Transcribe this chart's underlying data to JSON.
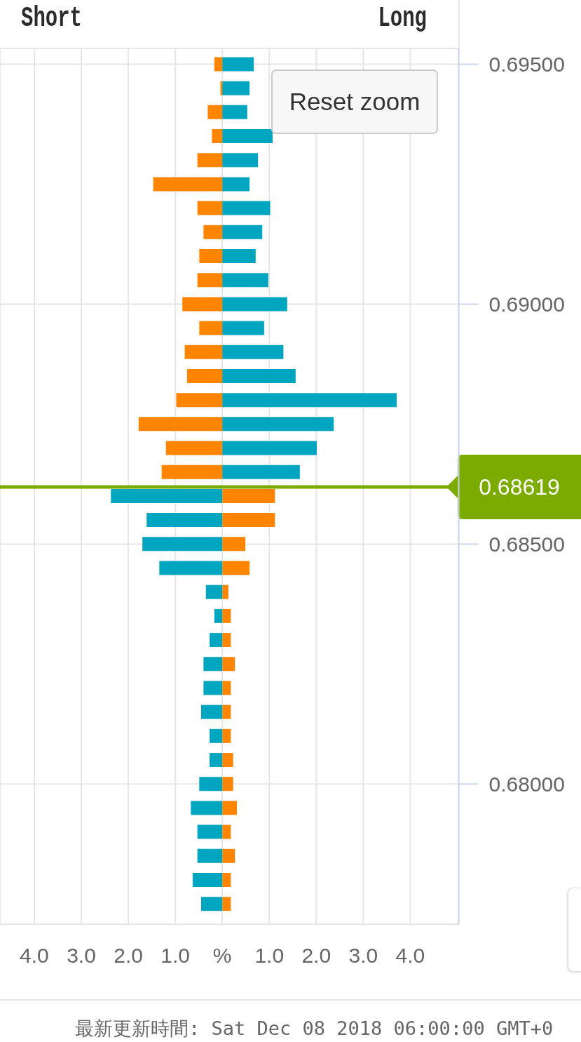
{
  "chart_data": {
    "type": "bar",
    "orientation": "horizontal",
    "stacked": true,
    "x": [
      0.695,
      0.6945,
      0.694,
      0.6935,
      0.693,
      0.6925,
      0.692,
      0.6915,
      0.691,
      0.6905,
      0.69,
      0.6895,
      0.689,
      0.6885,
      0.688,
      0.6875,
      0.687,
      0.6865,
      0.686,
      0.6855,
      0.685,
      0.6845,
      0.684,
      0.6835,
      0.683,
      0.6825,
      0.682,
      0.6815,
      0.681,
      0.6805,
      0.68,
      0.6795,
      0.679,
      0.6785,
      0.678,
      0.6775
    ],
    "series": [
      {
        "colors": [
          "#ff8400",
          "#ff8400",
          "#ff8400",
          "#ff8400",
          "#ff8400",
          "#ff8400",
          "#ff8400",
          "#ff8400",
          "#ff8400",
          "#ff8400",
          "#ff8400",
          "#ff8400",
          "#ff8400",
          "#ff8400",
          "#ff8400",
          "#ff8400",
          "#ff8400",
          "#ff8400",
          "#00a5c0",
          "#00a5c0",
          "#00a5c0",
          "#00a5c0",
          "#00a5c0",
          "#00a5c0",
          "#00a5c0",
          "#00a5c0",
          "#00a5c0",
          "#00a5c0",
          "#00a5c0",
          "#00a5c0",
          "#00a5c0",
          "#00a5c0",
          "#00a5c0",
          "#00a5c0",
          "#00a5c0",
          "#00a5c0"
        ],
        "values": [
          -0.17,
          -0.04,
          -0.31,
          -0.22,
          -0.53,
          -1.47,
          -0.53,
          -0.4,
          -0.49,
          -0.53,
          -0.85,
          -0.49,
          -0.8,
          -0.75,
          -0.98,
          -1.78,
          -1.2,
          -1.29,
          -2.37,
          -1.61,
          -1.7,
          -1.34,
          -0.35,
          -0.17,
          -0.27,
          -0.4,
          -0.4,
          -0.45,
          -0.27,
          -0.27,
          -0.49,
          -0.67,
          -0.53,
          -0.53,
          -0.63,
          -0.45
        ]
      },
      {
        "colors": [
          "#00a5c0",
          "#00a5c0",
          "#00a5c0",
          "#00a5c0",
          "#00a5c0",
          "#00a5c0",
          "#00a5c0",
          "#00a5c0",
          "#00a5c0",
          "#00a5c0",
          "#00a5c0",
          "#00a5c0",
          "#00a5c0",
          "#00a5c0",
          "#00a5c0",
          "#00a5c0",
          "#00a5c0",
          "#00a5c0",
          "#ff8400",
          "#ff8400",
          "#ff8400",
          "#ff8400",
          "#ff8400",
          "#ff8400",
          "#ff8400",
          "#ff8400",
          "#ff8400",
          "#ff8400",
          "#ff8400",
          "#ff8400",
          "#ff8400",
          "#ff8400",
          "#ff8400",
          "#ff8400",
          "#ff8400",
          "#ff8400"
        ],
        "values": [
          0.67,
          0.58,
          0.53,
          1.07,
          0.76,
          0.58,
          1.02,
          0.85,
          0.71,
          0.98,
          1.38,
          0.89,
          1.3,
          1.56,
          3.71,
          2.37,
          2.01,
          1.65,
          1.12,
          1.12,
          0.49,
          0.58,
          0.13,
          0.18,
          0.18,
          0.27,
          0.18,
          0.18,
          0.18,
          0.23,
          0.23,
          0.31,
          0.18,
          0.27,
          0.18,
          0.18
        ]
      }
    ],
    "xlim": [
      -4.73,
      5.03
    ],
    "xticks": [
      {
        "value": -4,
        "label": "4.0"
      },
      {
        "value": -3,
        "label": "3.0"
      },
      {
        "value": -2,
        "label": "2.0"
      },
      {
        "value": -1,
        "label": "1.0"
      },
      {
        "value": 0,
        "label": "%"
      },
      {
        "value": 1,
        "label": "1.0"
      },
      {
        "value": 2,
        "label": "2.0"
      },
      {
        "value": 3,
        "label": "3.0"
      },
      {
        "value": 4,
        "label": "4.0"
      }
    ],
    "ylim": [
      0.67708,
      0.69533
    ],
    "yticks": [
      {
        "value": 0.68,
        "label": "0.68000"
      },
      {
        "value": 0.685,
        "label": "0.68500"
      },
      {
        "value": 0.69,
        "label": "0.69000"
      },
      {
        "value": 0.695,
        "label": "0.69500"
      }
    ],
    "grid": true,
    "ref_lines": [
      {
        "axis": "y",
        "value": 0.68619,
        "label": "0.68619",
        "color": "#7cab00"
      }
    ],
    "annotations": [
      "Short",
      "Long",
      "Reset zoom",
      "最新更新時間: Sat Dec 08 2018 06:00:00 GMT+0"
    ]
  }
}
